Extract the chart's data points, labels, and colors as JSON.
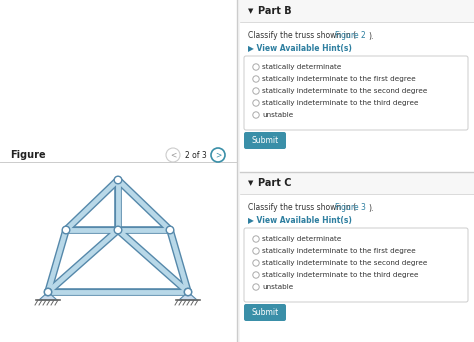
{
  "bg_color": "#f0f0f0",
  "panel_bg": "#ffffff",
  "left_bg": "#ffffff",
  "figure_label": "Figure",
  "nav_text": "2 of 3",
  "part_b_header": "Part B",
  "part_b_hint": "▶ View Available Hint(s)",
  "part_b_options": [
    "statically determinate",
    "statically indeterminate to the first degree",
    "statically indeterminate to the second degree",
    "statically indeterminate to the third degree",
    "unstable"
  ],
  "part_c_header": "Part C",
  "part_c_hint": "▶ View Available Hint(s)",
  "part_c_options": [
    "statically determinate",
    "statically indeterminate to the first degree",
    "statically indeterminate to the second degree",
    "statically indeterminate to the third degree",
    "unstable"
  ],
  "submit_color": "#3a8fa8",
  "submit_text_color": "#ffffff",
  "hint_color": "#2e7fa0",
  "link_color": "#2e7fa0",
  "header_color": "#222222",
  "option_text_color": "#333333",
  "border_color": "#cccccc",
  "truss_fill": "#b8d8e8",
  "truss_edge": "#5588aa",
  "node_fill": "#ddeef5",
  "ground_color": "#666666",
  "divider_color": "#cccccc",
  "hdr_bg": "#f7f7f7",
  "right_bg": "#f5f5f5"
}
